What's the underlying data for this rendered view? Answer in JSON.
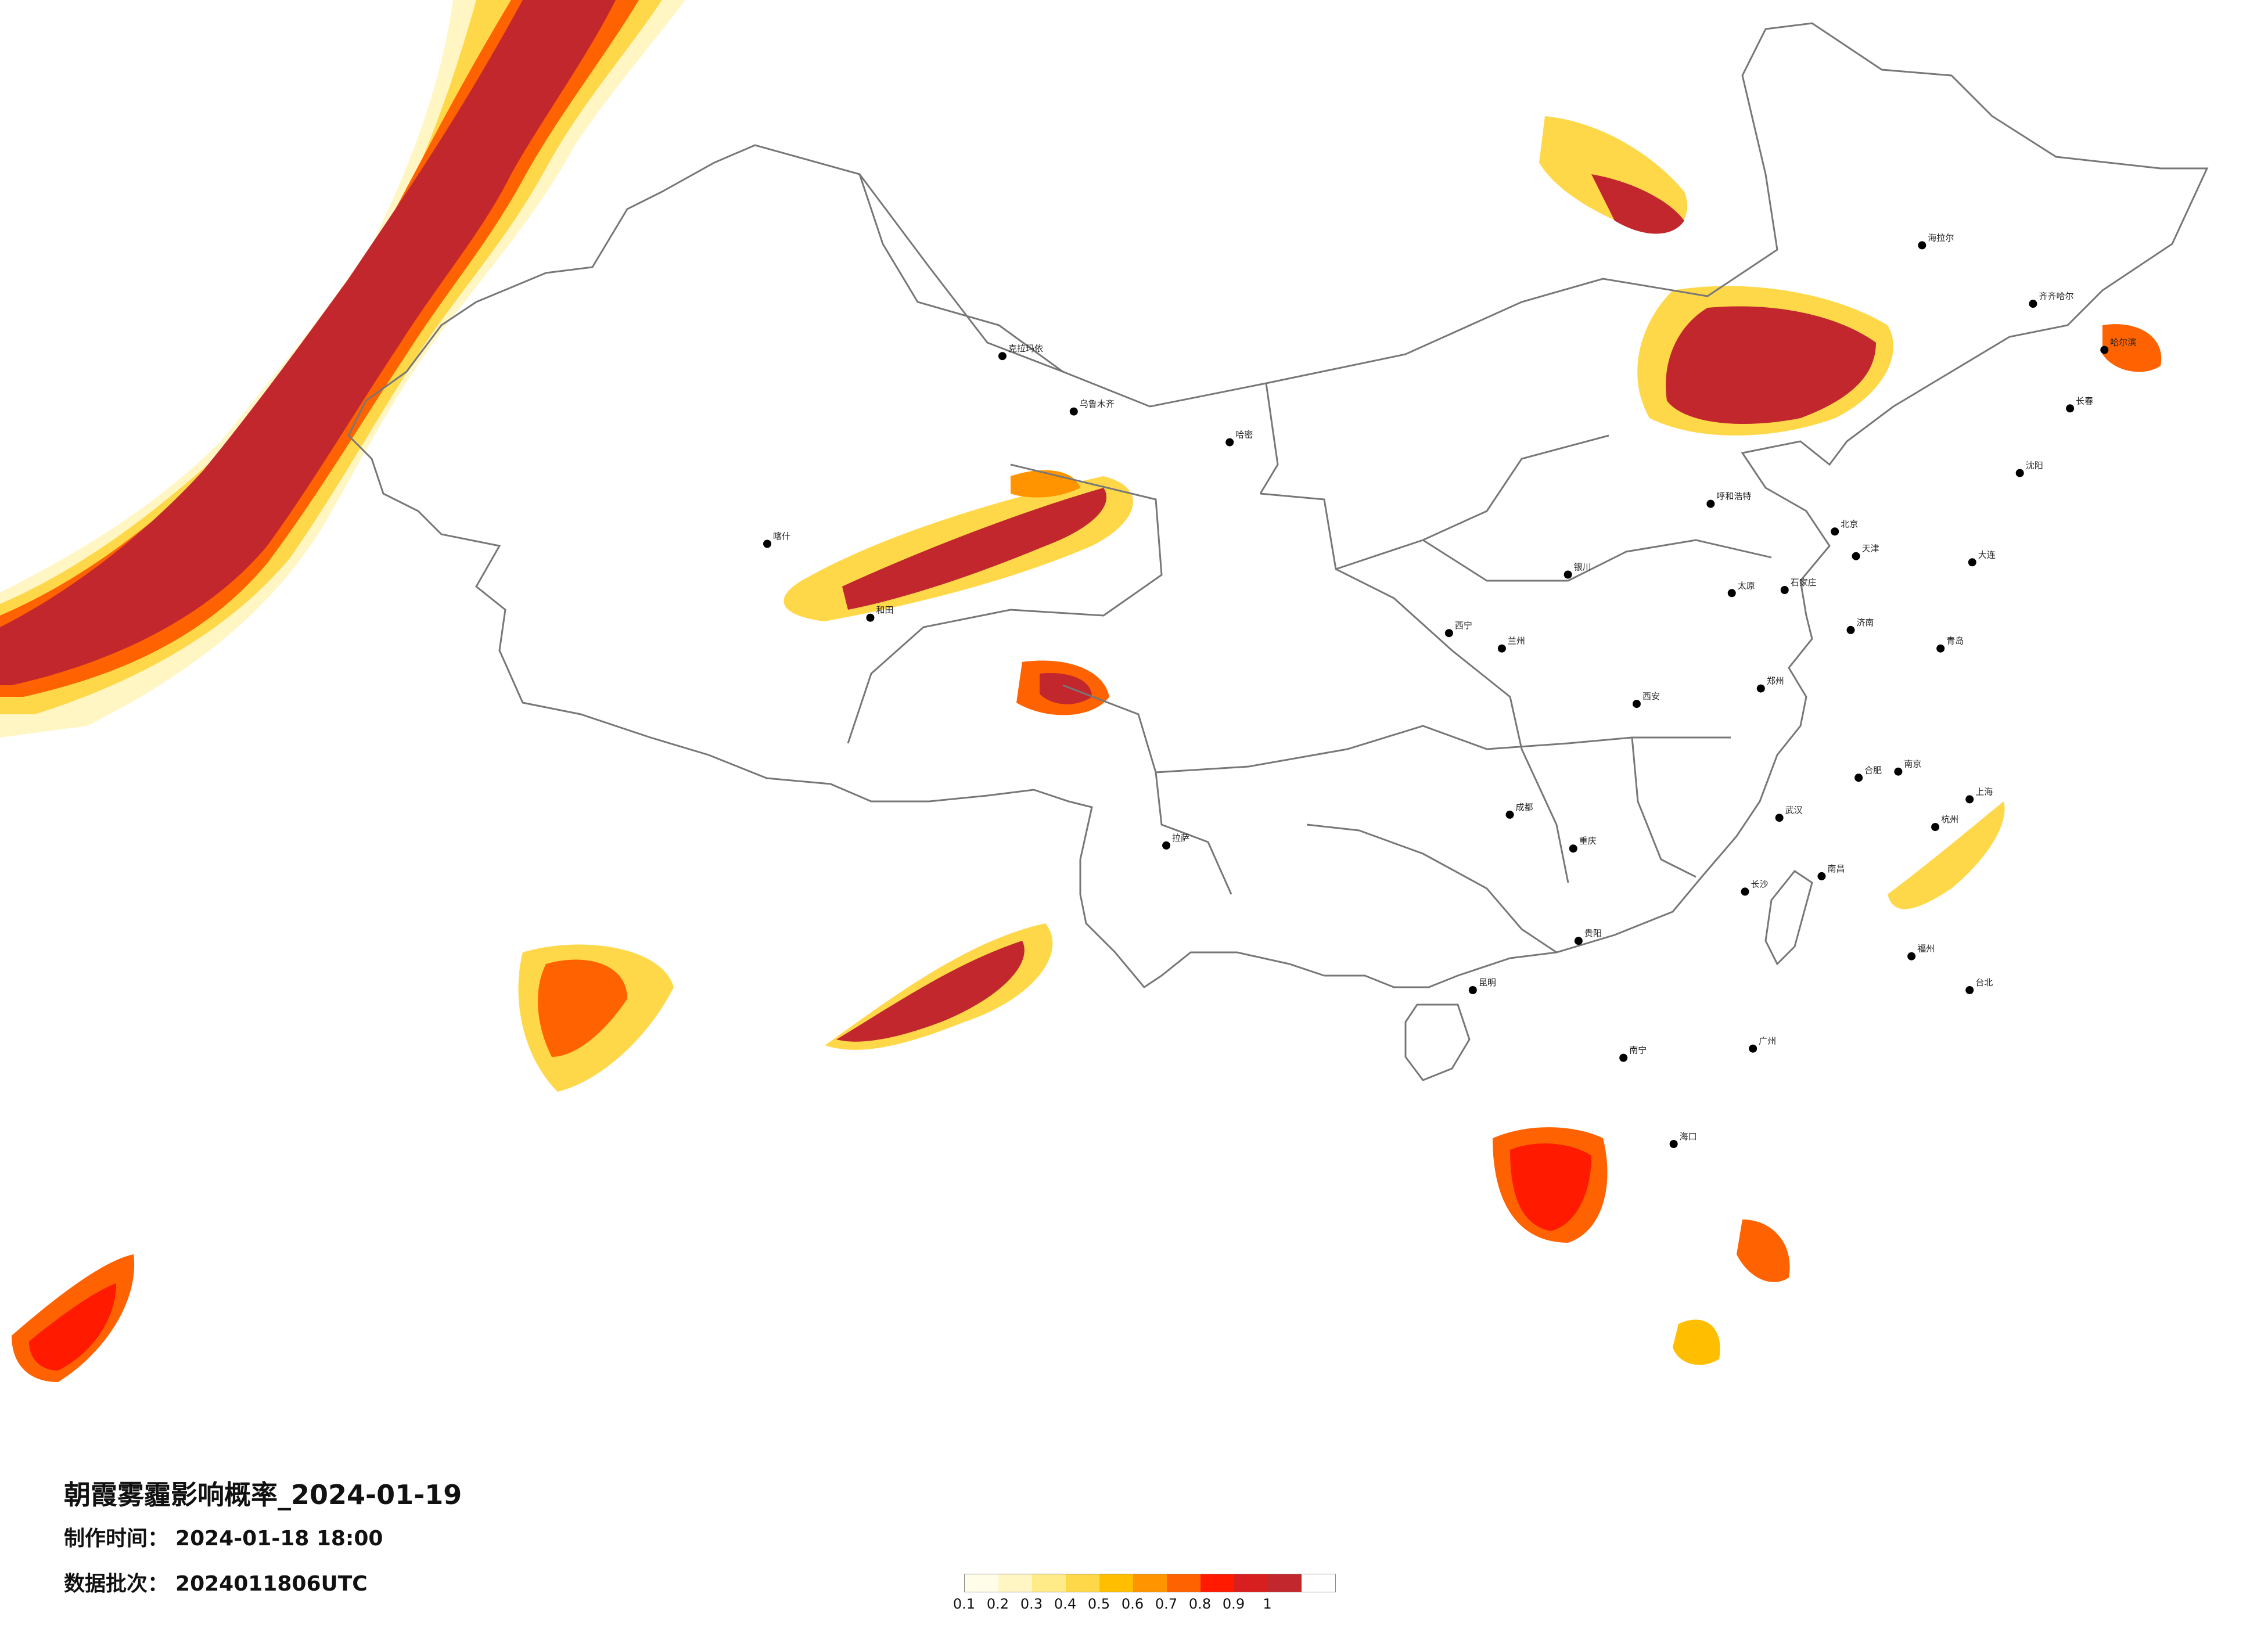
{
  "title": "朝霞雾霾影响概率_2024-01-19",
  "made_time": {
    "label": "制作时间：",
    "value": "2024-01-18 18:00"
  },
  "batch": {
    "label": "数据批次：",
    "value": "2024011806UTC"
  },
  "legend": {
    "ticks": [
      "0.1",
      "0.2",
      "0.3",
      "0.4",
      "0.5",
      "0.6",
      "0.7",
      "0.8",
      "0.9",
      "1"
    ],
    "colors": [
      "#fffce8",
      "#fff6c4",
      "#ffec88",
      "#ffd84a",
      "#ffbf00",
      "#ff9400",
      "#ff6200",
      "#ff1a00",
      "#d81f1f",
      "#c1272d"
    ]
  },
  "cities": [
    {
      "name": "哈尔滨",
      "lon": 126.6,
      "lat": 45.8
    },
    {
      "name": "长春",
      "lon": 125.3,
      "lat": 43.9
    },
    {
      "name": "沈阳",
      "lon": 123.4,
      "lat": 41.8
    },
    {
      "name": "北京",
      "lon": 116.4,
      "lat": 39.9
    },
    {
      "name": "天津",
      "lon": 117.2,
      "lat": 39.1
    },
    {
      "name": "石家庄",
      "lon": 114.5,
      "lat": 38.0
    },
    {
      "name": "太原",
      "lon": 112.5,
      "lat": 37.9
    },
    {
      "name": "呼和浩特",
      "lon": 111.7,
      "lat": 40.8
    },
    {
      "name": "济南",
      "lon": 117.0,
      "lat": 36.7
    },
    {
      "name": "郑州",
      "lon": 113.6,
      "lat": 34.8
    },
    {
      "name": "西安",
      "lon": 108.9,
      "lat": 34.3
    },
    {
      "name": "兰州",
      "lon": 103.8,
      "lat": 36.1
    },
    {
      "name": "西宁",
      "lon": 101.8,
      "lat": 36.6
    },
    {
      "name": "银川",
      "lon": 106.3,
      "lat": 38.5
    },
    {
      "name": "乌鲁木齐",
      "lon": 87.6,
      "lat": 43.8
    },
    {
      "name": "拉萨",
      "lon": 91.1,
      "lat": 29.7
    },
    {
      "name": "成都",
      "lon": 104.1,
      "lat": 30.7
    },
    {
      "name": "重庆",
      "lon": 106.5,
      "lat": 29.6
    },
    {
      "name": "贵阳",
      "lon": 106.7,
      "lat": 26.6
    },
    {
      "name": "昆明",
      "lon": 102.7,
      "lat": 25.0
    },
    {
      "name": "南宁",
      "lon": 108.4,
      "lat": 22.8
    },
    {
      "name": "广州",
      "lon": 113.3,
      "lat": 23.1
    },
    {
      "name": "长沙",
      "lon": 113.0,
      "lat": 28.2
    },
    {
      "name": "武汉",
      "lon": 114.3,
      "lat": 30.6
    },
    {
      "name": "南昌",
      "lon": 115.9,
      "lat": 28.7
    },
    {
      "name": "福州",
      "lon": 119.3,
      "lat": 26.1
    },
    {
      "name": "杭州",
      "lon": 120.2,
      "lat": 30.3
    },
    {
      "name": "南京",
      "lon": 118.8,
      "lat": 32.1
    },
    {
      "name": "合肥",
      "lon": 117.3,
      "lat": 31.9
    },
    {
      "name": "上海",
      "lon": 121.5,
      "lat": 31.2
    },
    {
      "name": "海口",
      "lon": 110.3,
      "lat": 20.0
    },
    {
      "name": "台北",
      "lon": 121.5,
      "lat": 25.0
    },
    {
      "name": "青岛",
      "lon": 120.4,
      "lat": 36.1
    },
    {
      "name": "大连",
      "lon": 121.6,
      "lat": 38.9
    },
    {
      "name": "喀什",
      "lon": 76.0,
      "lat": 39.5
    },
    {
      "name": "和田",
      "lon": 79.9,
      "lat": 37.1
    },
    {
      "name": "克拉玛依",
      "lon": 84.9,
      "lat": 45.6
    },
    {
      "name": "哈密",
      "lon": 93.5,
      "lat": 42.8
    },
    {
      "name": "海拉尔",
      "lon": 119.7,
      "lat": 49.2
    },
    {
      "name": "齐齐哈尔",
      "lon": 123.9,
      "lat": 47.3
    }
  ]
}
